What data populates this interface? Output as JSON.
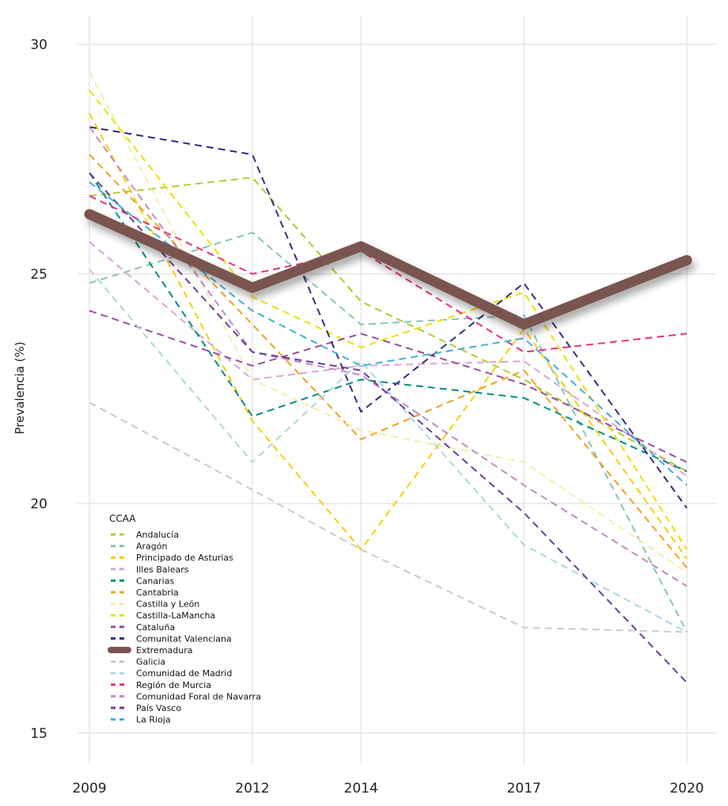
{
  "chart_data": {
    "type": "line",
    "title": "",
    "xlabel": "",
    "ylabel": "Prevalencia (%)",
    "x": [
      2009,
      2012,
      2014,
      2017,
      2020
    ],
    "xticks": [
      "2009",
      "2012",
      "2014",
      "2017",
      "2020"
    ],
    "yticks": [
      "15",
      "20",
      "25",
      "30"
    ],
    "ylim": [
      14.4,
      30.6
    ],
    "grid": true,
    "legend": {
      "title": "CCAA",
      "placement": "bottom-left (inside)"
    },
    "series": [
      {
        "name": "Andalucía",
        "color": "#b5c934",
        "values": [
          26.7,
          27.1,
          24.4,
          22.7,
          20.7
        ]
      },
      {
        "name": "Aragón",
        "color": "#86c5b5",
        "values": [
          24.8,
          25.9,
          23.9,
          24.1,
          17.2
        ]
      },
      {
        "name": "Principado de Asturias",
        "color": "#f5d000",
        "values": [
          28.5,
          21.8,
          19.0,
          23.8,
          18.8
        ]
      },
      {
        "name": "Illes Balears",
        "color": "#d7a6d6",
        "values": [
          25.7,
          22.7,
          23.0,
          23.1,
          20.6
        ]
      },
      {
        "name": "Canarias",
        "color": "#008b80",
        "values": [
          27.2,
          21.9,
          22.7,
          22.3,
          20.7
        ]
      },
      {
        "name": "Cantabria",
        "color": "#f0a020",
        "values": [
          27.6,
          23.9,
          21.4,
          22.9,
          18.6
        ]
      },
      {
        "name": "Castilla y León",
        "color": "#f3eeaa",
        "values": [
          29.4,
          22.7,
          21.6,
          20.9,
          18.5
        ]
      },
      {
        "name": "Castilla-LaMancha",
        "color": "#ece000",
        "values": [
          29.0,
          24.5,
          23.4,
          24.6,
          19.0
        ]
      },
      {
        "name": "Cataluña",
        "color": "#9b4d9b",
        "values": [
          24.2,
          23.0,
          23.7,
          22.6,
          20.9
        ]
      },
      {
        "name": "Comunitat Valenciana",
        "color": "#3b2a7a",
        "values": [
          28.2,
          27.6,
          22.0,
          24.8,
          19.9
        ]
      },
      {
        "name": "Extremadura",
        "color": "#7a5550",
        "values": [
          26.3,
          24.7,
          25.6,
          23.9,
          25.3
        ]
      },
      {
        "name": "Galicia",
        "color": "#c9c9d2",
        "values": [
          22.2,
          20.3,
          19.0,
          17.3,
          17.2
        ]
      },
      {
        "name": "Comunidad de Madrid",
        "color": "#a9d8e0",
        "values": [
          25.1,
          20.9,
          23.1,
          19.1,
          17.2
        ]
      },
      {
        "name": "Región de Murcia",
        "color": "#e8307a",
        "values": [
          26.7,
          25.0,
          25.5,
          23.3,
          23.7
        ]
      },
      {
        "name": "Comunidad Foral de Navarra",
        "color": "#c08ac0",
        "values": [
          28.2,
          23.3,
          22.8,
          20.4,
          18.2
        ]
      },
      {
        "name": "País Vasco",
        "color": "#6a3d9a",
        "values": [
          27.2,
          23.3,
          22.9,
          19.8,
          16.1
        ]
      },
      {
        "name": "La Rioja",
        "color": "#40b0d8",
        "values": [
          27.0,
          24.2,
          23.0,
          23.6,
          20.4
        ]
      }
    ]
  }
}
